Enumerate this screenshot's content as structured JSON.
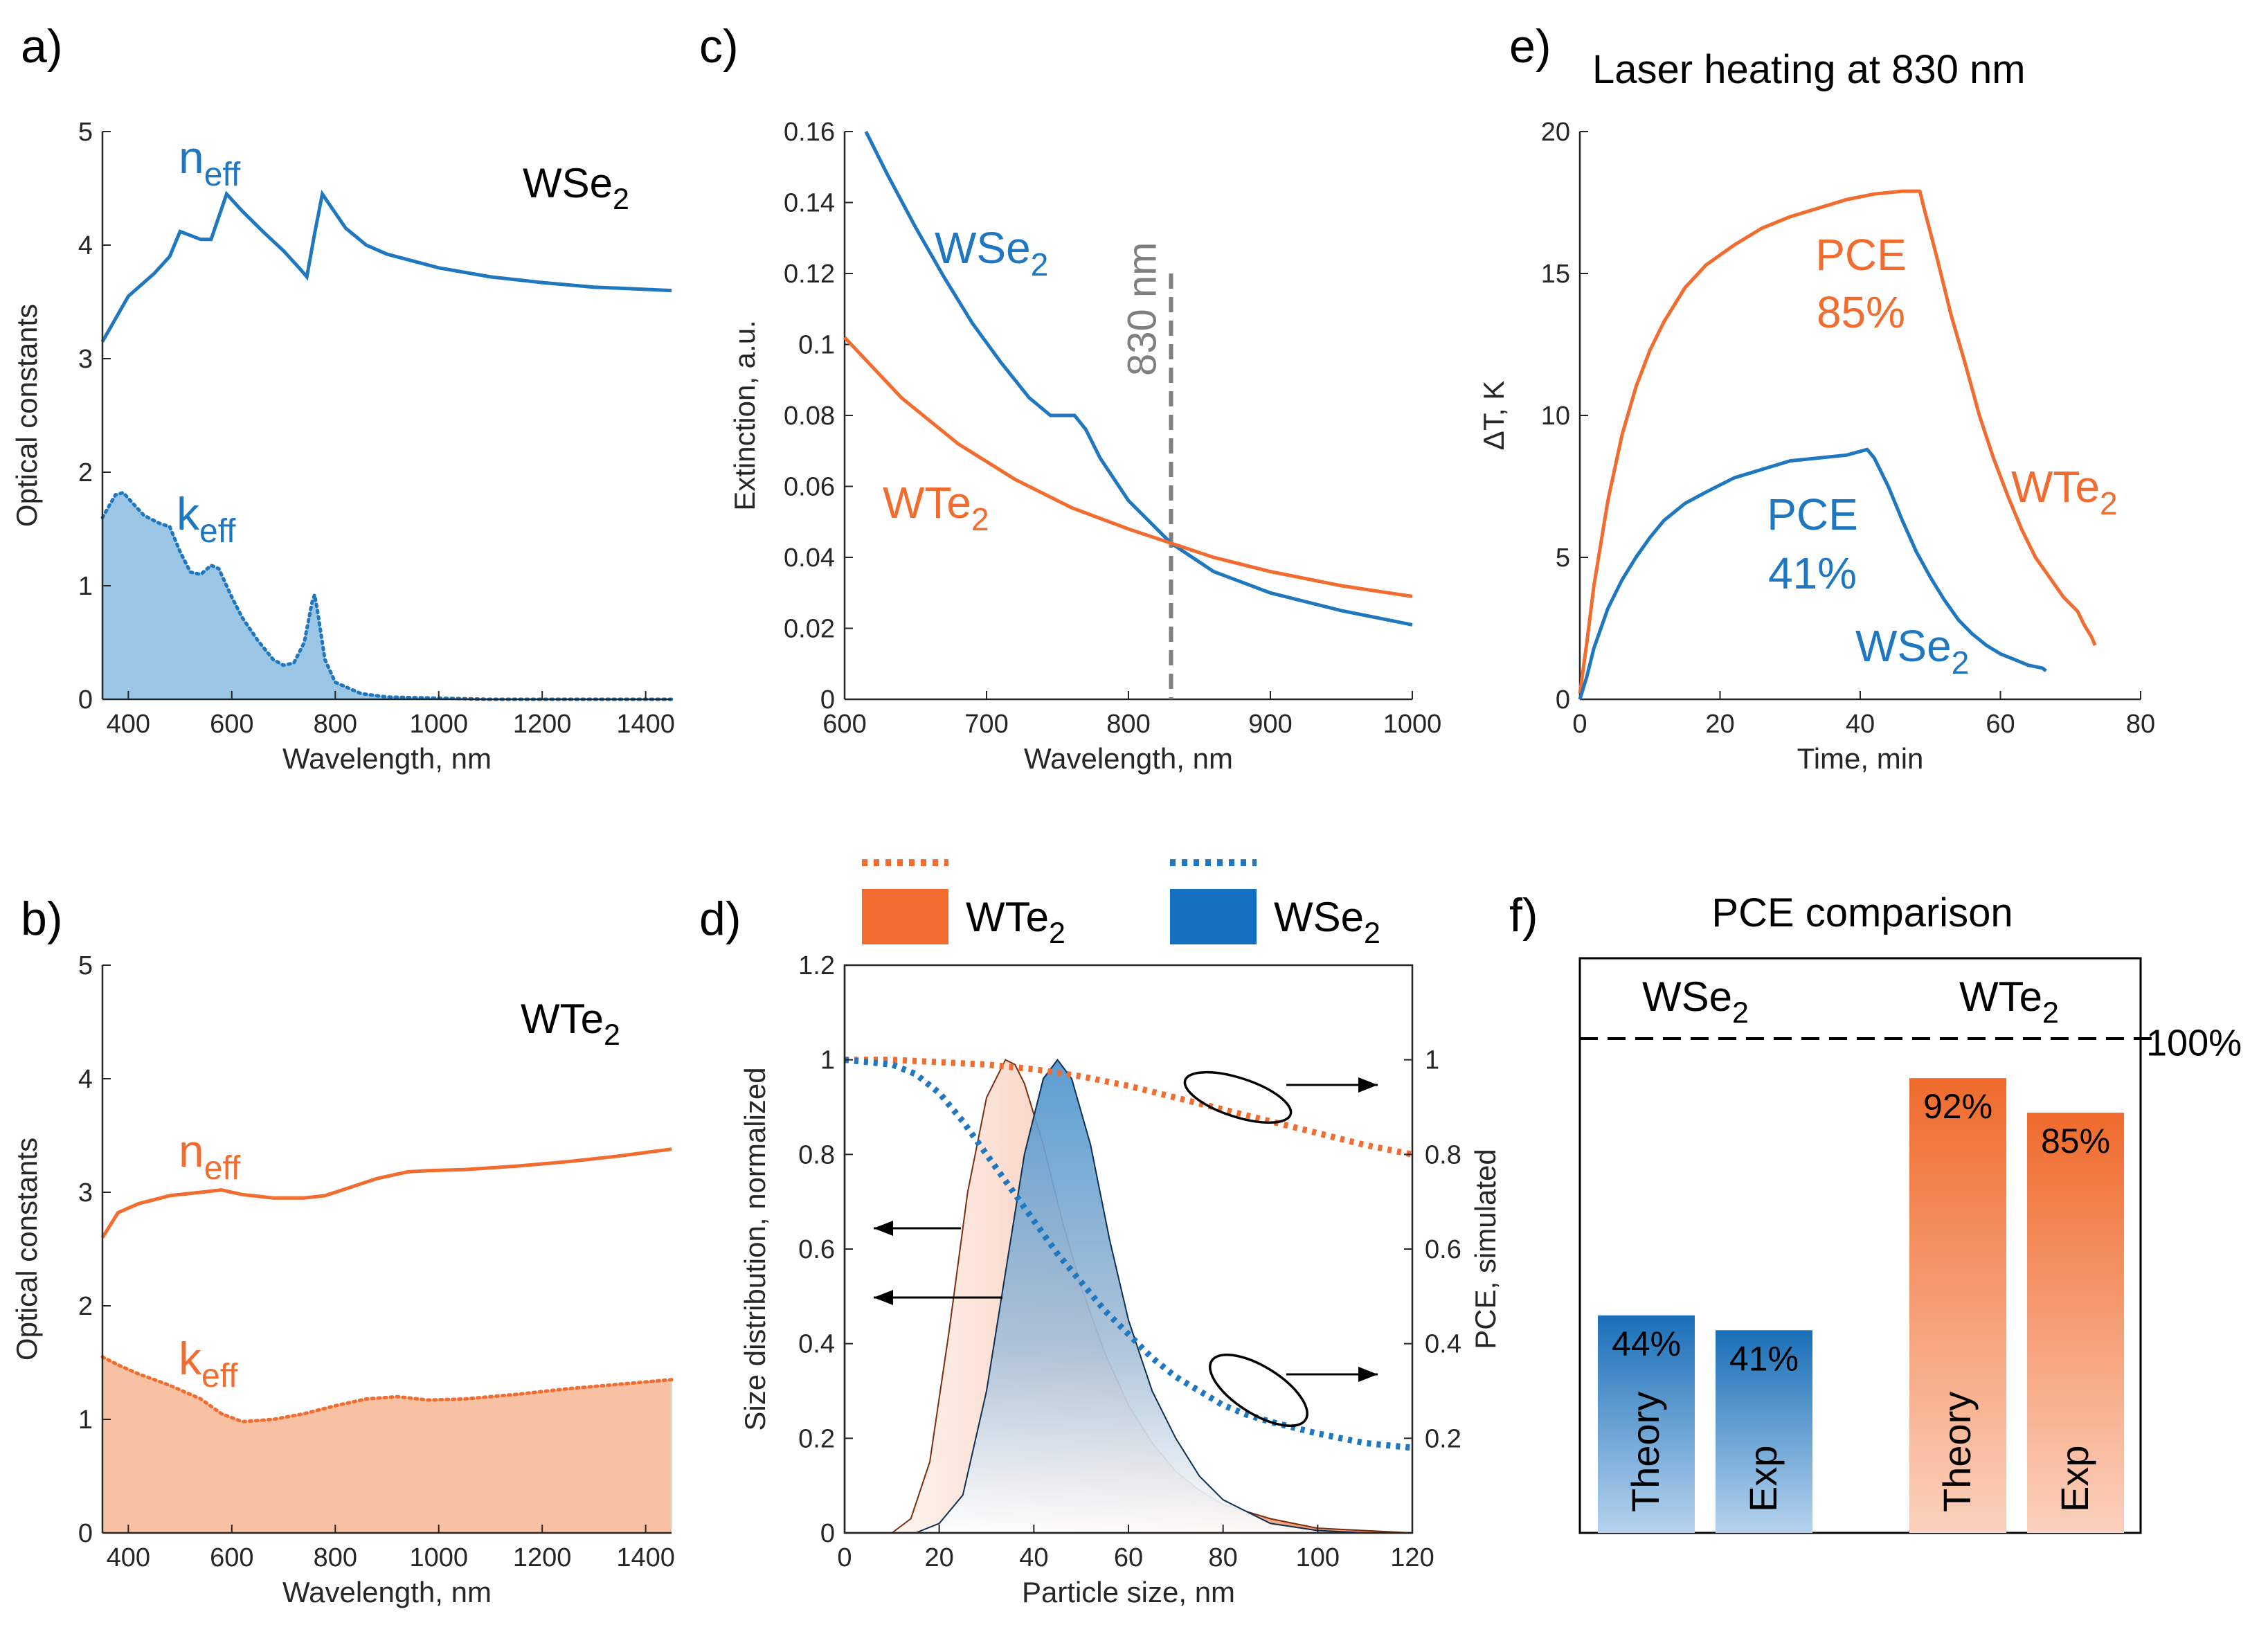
{
  "colors": {
    "blue": "#1f77c0",
    "orange": "#f26b2f",
    "blue_fill": "#9cc6e6",
    "orange_fill": "#f8c1a3",
    "gray_dashed": "#7f7f7f",
    "axis": "#262626"
  },
  "chart_data": [
    {
      "id": "a",
      "panel_label": "a)",
      "type": "line",
      "xlabel": "Wavelength, nm",
      "ylabel": "Optical constants",
      "xlim": [
        350,
        1450
      ],
      "ylim": [
        0,
        5
      ],
      "xticks": [
        "400",
        "600",
        "800",
        "1000",
        "1200",
        "1400"
      ],
      "yticks": [
        "0",
        "1",
        "2",
        "3",
        "4",
        "5"
      ],
      "material_label": {
        "main": "WSe",
        "sub": "2"
      },
      "series": [
        {
          "name": "n",
          "name_sub": "eff",
          "style": "solid",
          "x": [
            350,
            400,
            450,
            480,
            500,
            540,
            560,
            590,
            620,
            660,
            700,
            730,
            745,
            760,
            775,
            790,
            820,
            860,
            900,
            1000,
            1100,
            1200,
            1300,
            1450
          ],
          "y": [
            3.15,
            3.55,
            3.75,
            3.9,
            4.12,
            4.05,
            4.05,
            4.45,
            4.3,
            4.12,
            3.95,
            3.8,
            3.72,
            4.1,
            4.45,
            4.35,
            4.15,
            4.0,
            3.92,
            3.8,
            3.72,
            3.67,
            3.63,
            3.6
          ]
        },
        {
          "name": "k",
          "name_sub": "eff",
          "style": "dotted-filled",
          "x": [
            350,
            375,
            390,
            410,
            430,
            460,
            480,
            500,
            520,
            540,
            560,
            575,
            600,
            620,
            650,
            680,
            700,
            720,
            740,
            755,
            760,
            765,
            780,
            800,
            850,
            900,
            1000,
            1100,
            1200,
            1300,
            1450
          ],
          "y": [
            1.6,
            1.8,
            1.82,
            1.72,
            1.62,
            1.55,
            1.52,
            1.3,
            1.12,
            1.1,
            1.18,
            1.15,
            0.9,
            0.72,
            0.52,
            0.35,
            0.3,
            0.32,
            0.5,
            0.85,
            0.92,
            0.8,
            0.35,
            0.15,
            0.05,
            0.02,
            0.01,
            0.0,
            0.0,
            0.0,
            0.0
          ]
        }
      ]
    },
    {
      "id": "b",
      "panel_label": "b)",
      "type": "line",
      "xlabel": "Wavelength, nm",
      "ylabel": "Optical constants",
      "xlim": [
        350,
        1450
      ],
      "ylim": [
        0,
        5
      ],
      "xticks": [
        "400",
        "600",
        "800",
        "1000",
        "1200",
        "1400"
      ],
      "yticks": [
        "0",
        "1",
        "2",
        "3",
        "4",
        "5"
      ],
      "material_label": {
        "main": "WTe",
        "sub": "2"
      },
      "series": [
        {
          "name": "n",
          "name_sub": "eff",
          "style": "solid",
          "x": [
            350,
            380,
            420,
            480,
            540,
            580,
            620,
            680,
            740,
            780,
            820,
            880,
            940,
            980,
            1050,
            1150,
            1250,
            1350,
            1450
          ],
          "y": [
            2.6,
            2.82,
            2.9,
            2.97,
            3.0,
            3.02,
            2.98,
            2.95,
            2.95,
            2.97,
            3.03,
            3.12,
            3.18,
            3.19,
            3.2,
            3.23,
            3.27,
            3.32,
            3.38
          ]
        },
        {
          "name": "k",
          "name_sub": "eff",
          "style": "dotted-filled",
          "x": [
            350,
            380,
            420,
            480,
            540,
            580,
            620,
            680,
            740,
            800,
            860,
            920,
            980,
            1050,
            1150,
            1250,
            1350,
            1450
          ],
          "y": [
            1.55,
            1.48,
            1.4,
            1.3,
            1.18,
            1.05,
            0.98,
            1.0,
            1.05,
            1.12,
            1.18,
            1.2,
            1.17,
            1.18,
            1.22,
            1.27,
            1.31,
            1.35
          ]
        }
      ]
    },
    {
      "id": "c",
      "panel_label": "c)",
      "type": "line",
      "xlabel": "Wavelength, nm",
      "ylabel": "Extinction, a.u.",
      "xlim": [
        600,
        1000
      ],
      "ylim": [
        0,
        0.16
      ],
      "xticks": [
        "600",
        "700",
        "800",
        "900",
        "1000"
      ],
      "yticks": [
        "0",
        "0.02",
        "0.04",
        "0.06",
        "0.08",
        "0.1",
        "0.12",
        "0.14",
        "0.16"
      ],
      "vline": {
        "x": 830,
        "label": "830 nm"
      },
      "series": [
        {
          "name": "WSe",
          "name_sub": "2",
          "color": "blue",
          "x": [
            615,
            630,
            650,
            670,
            690,
            710,
            730,
            745,
            755,
            762,
            770,
            780,
            800,
            830,
            860,
            900,
            950,
            1000
          ],
          "y": [
            0.16,
            0.148,
            0.133,
            0.119,
            0.106,
            0.095,
            0.085,
            0.08,
            0.08,
            0.08,
            0.076,
            0.068,
            0.056,
            0.044,
            0.036,
            0.03,
            0.025,
            0.021
          ]
        },
        {
          "name": "WTe",
          "name_sub": "2",
          "color": "orange",
          "x": [
            600,
            640,
            680,
            720,
            760,
            800,
            830,
            860,
            900,
            950,
            1000
          ],
          "y": [
            0.102,
            0.085,
            0.072,
            0.062,
            0.054,
            0.048,
            0.044,
            0.04,
            0.036,
            0.032,
            0.029
          ]
        }
      ]
    },
    {
      "id": "d",
      "panel_label": "d)",
      "type": "area",
      "xlabel": "Particle size, nm",
      "ylabel": "Size distribution, normalized",
      "y2label": "PCE, simulated",
      "xlim": [
        0,
        120
      ],
      "ylim": [
        0,
        1.2
      ],
      "y2lim": [
        0,
        1.2
      ],
      "xticks": [
        "0",
        "20",
        "40",
        "60",
        "80",
        "100",
        "120"
      ],
      "yticks": [
        "0",
        "0.2",
        "0.4",
        "0.6",
        "0.8",
        "1",
        "1.2"
      ],
      "y2ticks": [
        "0.2",
        "0.4",
        "0.6",
        "0.8",
        "1"
      ],
      "legend": [
        {
          "name": "WTe",
          "name_sub": "2",
          "color": "orange"
        },
        {
          "name": "WSe",
          "name_sub": "2",
          "color": "blue"
        }
      ],
      "series": [
        {
          "name": "WTe2 size distribution",
          "color": "orange",
          "kind": "area",
          "x": [
            0,
            10,
            14,
            18,
            22,
            26,
            30,
            34,
            36,
            38,
            42,
            46,
            50,
            55,
            60,
            65,
            70,
            75,
            80,
            90,
            100,
            110,
            120
          ],
          "y": [
            0,
            0.0,
            0.03,
            0.15,
            0.42,
            0.72,
            0.92,
            1.0,
            0.99,
            0.95,
            0.82,
            0.66,
            0.52,
            0.38,
            0.27,
            0.19,
            0.13,
            0.09,
            0.06,
            0.03,
            0.01,
            0.005,
            0.0
          ]
        },
        {
          "name": "WSe2 size distribution",
          "color": "blue",
          "kind": "area",
          "x": [
            0,
            15,
            20,
            25,
            30,
            34,
            38,
            42,
            45,
            48,
            52,
            56,
            60,
            65,
            70,
            75,
            80,
            90,
            100,
            110,
            120
          ],
          "y": [
            0,
            0.0,
            0.02,
            0.08,
            0.3,
            0.55,
            0.8,
            0.96,
            1.0,
            0.96,
            0.82,
            0.62,
            0.45,
            0.3,
            0.2,
            0.12,
            0.07,
            0.02,
            0.005,
            0.0,
            0.0
          ]
        },
        {
          "name": "WTe2 PCE",
          "color": "orange",
          "kind": "dotted",
          "axis": "right",
          "x": [
            0,
            10,
            20,
            30,
            40,
            50,
            60,
            70,
            80,
            90,
            100,
            110,
            120
          ],
          "y": [
            1.0,
            1.0,
            0.995,
            0.99,
            0.98,
            0.965,
            0.945,
            0.92,
            0.895,
            0.87,
            0.845,
            0.82,
            0.8
          ]
        },
        {
          "name": "WSe2 PCE",
          "color": "blue",
          "kind": "dotted",
          "axis": "right",
          "x": [
            0,
            10,
            15,
            20,
            25,
            30,
            35,
            40,
            45,
            50,
            55,
            60,
            65,
            70,
            75,
            80,
            85,
            90,
            100,
            110,
            120
          ],
          "y": [
            1.0,
            0.99,
            0.97,
            0.93,
            0.87,
            0.8,
            0.73,
            0.66,
            0.59,
            0.53,
            0.47,
            0.42,
            0.37,
            0.33,
            0.3,
            0.27,
            0.25,
            0.235,
            0.21,
            0.19,
            0.18
          ]
        }
      ]
    },
    {
      "id": "e",
      "panel_label": "e)",
      "title": "Laser heating at 830 nm",
      "type": "line",
      "xlabel": "Time, min",
      "ylabel": "ΔT, K",
      "xlim": [
        0,
        80
      ],
      "ylim": [
        0,
        20
      ],
      "xticks": [
        "0",
        "20",
        "40",
        "60",
        "80"
      ],
      "yticks": [
        "0",
        "5",
        "10",
        "15",
        "20"
      ],
      "annotations": [
        {
          "text": "PCE",
          "color": "orange"
        },
        {
          "text": "85%",
          "color": "orange"
        },
        {
          "text": "PCE",
          "color": "blue"
        },
        {
          "text": "41%",
          "color": "blue"
        }
      ],
      "series": [
        {
          "name": "WTe",
          "name_sub": "2",
          "color": "orange",
          "x": [
            0,
            1,
            2,
            4,
            6,
            8,
            10,
            12,
            15,
            18,
            22,
            26,
            30,
            34,
            38,
            42,
            46,
            48.5,
            49,
            51,
            53,
            55,
            57,
            59,
            61,
            63,
            65,
            67,
            69,
            71,
            72,
            73,
            73.5
          ],
          "y": [
            0.2,
            2.0,
            4.0,
            7.0,
            9.3,
            11.0,
            12.3,
            13.3,
            14.5,
            15.3,
            16.0,
            16.6,
            17.0,
            17.3,
            17.6,
            17.8,
            17.9,
            17.9,
            17.4,
            15.5,
            13.5,
            11.8,
            10.0,
            8.5,
            7.2,
            6.0,
            5.0,
            4.3,
            3.6,
            3.1,
            2.6,
            2.2,
            1.9
          ]
        },
        {
          "name": "WSe",
          "name_sub": "2",
          "color": "blue",
          "x": [
            0,
            1,
            2,
            4,
            6,
            8,
            10,
            12,
            15,
            18,
            22,
            26,
            30,
            34,
            38,
            41,
            42,
            44,
            46,
            48,
            50,
            52,
            54,
            56,
            58,
            60,
            62,
            64,
            66,
            66.5
          ],
          "y": [
            0.0,
            0.8,
            1.8,
            3.2,
            4.2,
            5.0,
            5.7,
            6.3,
            6.9,
            7.3,
            7.8,
            8.1,
            8.4,
            8.5,
            8.6,
            8.8,
            8.5,
            7.5,
            6.3,
            5.2,
            4.3,
            3.5,
            2.8,
            2.3,
            1.9,
            1.6,
            1.4,
            1.2,
            1.1,
            1.0
          ]
        }
      ]
    },
    {
      "id": "f",
      "panel_label": "f)",
      "title": "PCE comparison",
      "type": "bar",
      "group_labels": [
        {
          "main": "WSe",
          "sub": "2"
        },
        {
          "main": "WTe",
          "sub": "2"
        }
      ],
      "reference": {
        "value": 100,
        "label": "100%"
      },
      "bars": [
        {
          "category": "Theory",
          "group": "WSe2",
          "value": 44,
          "label": "44%",
          "color": "blue"
        },
        {
          "category": "Exp",
          "group": "WSe2",
          "value": 41,
          "label": "41%",
          "color": "blue"
        },
        {
          "category": "Theory",
          "group": "WTe2",
          "value": 92,
          "label": "92%",
          "color": "orange"
        },
        {
          "category": "Exp",
          "group": "WTe2",
          "value": 85,
          "label": "85%",
          "color": "orange"
        }
      ]
    }
  ]
}
